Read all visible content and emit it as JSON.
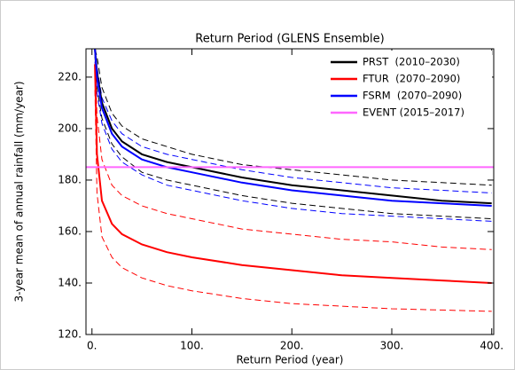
{
  "chart_data": {
    "type": "line",
    "title": "Return Period (GLENS Ensemble)",
    "xlabel": "Return Period (year)",
    "ylabel": "3-year mean of annual rainfall (mm/year)",
    "x": [
      3,
      5,
      10,
      20,
      30,
      50,
      75,
      100,
      150,
      200,
      250,
      300,
      350,
      400
    ],
    "xlim": [
      -6,
      402
    ],
    "ylim": [
      120,
      231
    ],
    "xticks": [
      {
        "value": 0,
        "label": "0."
      },
      {
        "value": 100,
        "label": "100."
      },
      {
        "value": 200,
        "label": "200."
      },
      {
        "value": 300,
        "label": "300."
      },
      {
        "value": 400,
        "label": "400."
      }
    ],
    "yticks": [
      {
        "value": 120,
        "label": "120."
      },
      {
        "value": 140,
        "label": "140."
      },
      {
        "value": 160,
        "label": "160."
      },
      {
        "value": 180,
        "label": "180."
      },
      {
        "value": 200,
        "label": "200."
      },
      {
        "value": 220,
        "label": "220."
      }
    ],
    "legend": "upper right",
    "series": [
      {
        "color": "#000000",
        "dashed": true,
        "values": [
          231,
          228,
          216,
          206,
          201,
          196,
          193,
          190,
          186,
          184,
          182,
          180,
          179,
          178
        ]
      },
      {
        "color": "#000000",
        "dashed": true,
        "values": [
          228,
          216,
          204,
          194,
          189,
          183,
          180,
          178,
          174,
          171,
          169,
          167,
          166,
          165
        ]
      },
      {
        "color": "#0000ff",
        "dashed": true,
        "values": [
          231,
          224,
          212,
          203,
          198,
          193,
          190,
          188,
          184,
          181,
          179,
          177,
          176,
          175
        ]
      },
      {
        "color": "#0000ff",
        "dashed": true,
        "values": [
          226,
          214,
          202,
          192,
          187,
          182,
          178,
          176,
          172,
          169,
          167,
          166,
          165,
          164
        ]
      },
      {
        "color": "#ff0000",
        "dashed": true,
        "values": [
          231,
          205,
          188,
          178,
          174,
          170,
          167,
          165,
          161,
          159,
          157,
          156,
          154,
          153
        ]
      },
      {
        "color": "#ff0000",
        "dashed": true,
        "values": [
          215,
          175,
          158,
          150,
          146,
          142,
          139,
          137,
          134,
          132,
          131,
          130,
          129.5,
          129
        ]
      },
      {
        "name": "PRST  (2010–2030)",
        "color": "#000000",
        "values": [
          231,
          222,
          210,
          200,
          195,
          190,
          187,
          185,
          181,
          178,
          176,
          174,
          172,
          171
        ]
      },
      {
        "name": "FTUR  (2070–2090)",
        "color": "#ff0000",
        "values": [
          225,
          190,
          172,
          163,
          159,
          155,
          152,
          150,
          147,
          145,
          143,
          142,
          141,
          140
        ]
      },
      {
        "name": "FSRM  (2070–2090)",
        "color": "#0000ff",
        "values": [
          231,
          220,
          208,
          198,
          193,
          188,
          185,
          183,
          179,
          176,
          174,
          172,
          171,
          170
        ]
      },
      {
        "name": "EVENT (2015–2017)",
        "color": "#ff66ff",
        "x": [
          -6,
          402
        ],
        "values": [
          185,
          185
        ]
      }
    ]
  }
}
